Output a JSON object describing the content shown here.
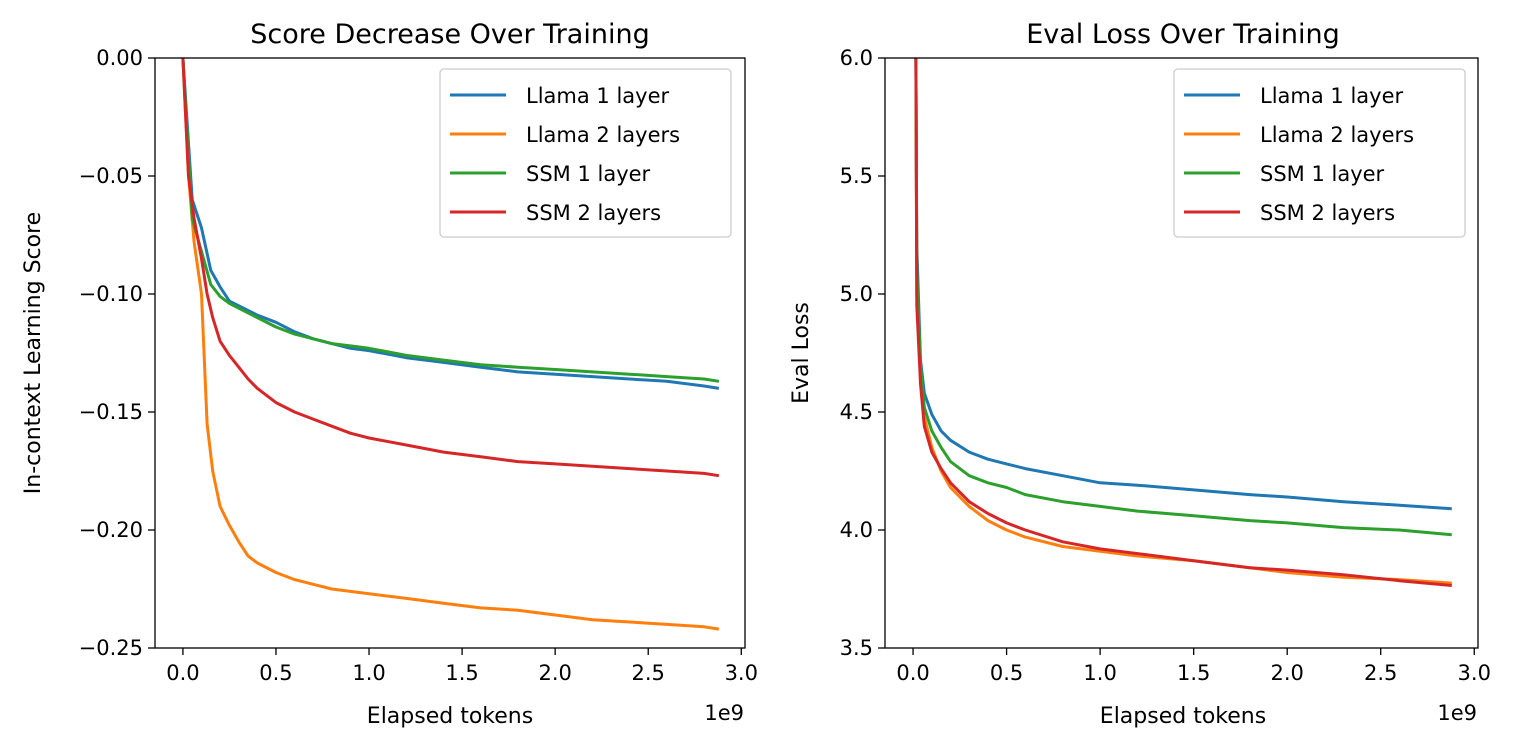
{
  "chart_data": [
    {
      "type": "line",
      "title": "Score Decrease Over Training",
      "xlabel": "Elapsed tokens",
      "ylabel": "In-context Learning Score",
      "x_offset_label": "1e9",
      "xlim": [
        -0.15,
        3.02
      ],
      "ylim": [
        -0.25,
        0.0
      ],
      "xticks": [
        0.0,
        0.5,
        1.0,
        1.5,
        2.0,
        2.5,
        3.0
      ],
      "xtick_labels": [
        "0.0",
        "0.5",
        "1.0",
        "1.5",
        "2.0",
        "2.5",
        "3.0"
      ],
      "yticks": [
        0.0,
        -0.05,
        -0.1,
        -0.15,
        -0.2,
        -0.25
      ],
      "ytick_labels": [
        "0.00",
        "−0.05",
        "−0.10",
        "−0.15",
        "−0.20",
        "−0.25"
      ],
      "grid": false,
      "legend": "top-right",
      "series": [
        {
          "name": "Llama 1 layer",
          "color": "#1f77b4",
          "x": [
            0.0,
            0.05,
            0.1,
            0.15,
            0.2,
            0.25,
            0.3,
            0.4,
            0.5,
            0.6,
            0.7,
            0.8,
            0.9,
            1.0,
            1.2,
            1.4,
            1.6,
            1.8,
            2.0,
            2.2,
            2.4,
            2.6,
            2.8,
            2.88
          ],
          "y": [
            0.0,
            -0.06,
            -0.072,
            -0.09,
            -0.097,
            -0.103,
            -0.105,
            -0.109,
            -0.112,
            -0.116,
            -0.119,
            -0.121,
            -0.123,
            -0.124,
            -0.127,
            -0.129,
            -0.131,
            -0.133,
            -0.134,
            -0.135,
            -0.136,
            -0.137,
            -0.139,
            -0.14
          ]
        },
        {
          "name": "Llama 2 layers",
          "color": "#ff7f0e",
          "x": [
            0.0,
            0.03,
            0.06,
            0.1,
            0.13,
            0.16,
            0.2,
            0.25,
            0.3,
            0.35,
            0.4,
            0.5,
            0.6,
            0.7,
            0.8,
            0.9,
            1.0,
            1.2,
            1.4,
            1.6,
            1.8,
            2.0,
            2.2,
            2.4,
            2.6,
            2.8,
            2.88
          ],
          "y": [
            0.0,
            -0.05,
            -0.078,
            -0.1,
            -0.155,
            -0.175,
            -0.19,
            -0.198,
            -0.205,
            -0.211,
            -0.214,
            -0.218,
            -0.221,
            -0.223,
            -0.225,
            -0.226,
            -0.227,
            -0.229,
            -0.231,
            -0.233,
            -0.234,
            -0.236,
            -0.238,
            -0.239,
            -0.24,
            -0.241,
            -0.242
          ]
        },
        {
          "name": "SSM 1 layer",
          "color": "#2ca02c",
          "x": [
            0.0,
            0.05,
            0.1,
            0.15,
            0.2,
            0.25,
            0.3,
            0.4,
            0.5,
            0.6,
            0.7,
            0.8,
            0.9,
            1.0,
            1.2,
            1.4,
            1.6,
            1.8,
            2.0,
            2.2,
            2.4,
            2.6,
            2.8,
            2.88
          ],
          "y": [
            0.0,
            -0.068,
            -0.082,
            -0.096,
            -0.101,
            -0.104,
            -0.106,
            -0.11,
            -0.114,
            -0.117,
            -0.119,
            -0.121,
            -0.122,
            -0.123,
            -0.126,
            -0.128,
            -0.13,
            -0.131,
            -0.132,
            -0.133,
            -0.134,
            -0.135,
            -0.136,
            -0.137
          ]
        },
        {
          "name": "SSM 2 layers",
          "color": "#d62728",
          "x": [
            0.0,
            0.03,
            0.06,
            0.1,
            0.13,
            0.16,
            0.2,
            0.25,
            0.3,
            0.35,
            0.4,
            0.5,
            0.6,
            0.7,
            0.8,
            0.9,
            1.0,
            1.2,
            1.4,
            1.6,
            1.8,
            2.0,
            2.2,
            2.4,
            2.6,
            2.8,
            2.88
          ],
          "y": [
            0.0,
            -0.05,
            -0.068,
            -0.085,
            -0.1,
            -0.11,
            -0.12,
            -0.126,
            -0.131,
            -0.136,
            -0.14,
            -0.146,
            -0.15,
            -0.153,
            -0.156,
            -0.159,
            -0.161,
            -0.164,
            -0.167,
            -0.169,
            -0.171,
            -0.172,
            -0.173,
            -0.174,
            -0.175,
            -0.176,
            -0.177
          ]
        }
      ]
    },
    {
      "type": "line",
      "title": "Eval Loss Over Training",
      "xlabel": "Elapsed tokens",
      "ylabel": "Eval Loss",
      "x_offset_label": "1e9",
      "xlim": [
        -0.15,
        3.02
      ],
      "ylim": [
        3.5,
        6.0
      ],
      "xticks": [
        0.0,
        0.5,
        1.0,
        1.5,
        2.0,
        2.5,
        3.0
      ],
      "xtick_labels": [
        "0.0",
        "0.5",
        "1.0",
        "1.5",
        "2.0",
        "2.5",
        "3.0"
      ],
      "yticks": [
        3.5,
        4.0,
        4.5,
        5.0,
        5.5,
        6.0
      ],
      "ytick_labels": [
        "3.5",
        "4.0",
        "4.5",
        "5.0",
        "5.5",
        "6.0"
      ],
      "grid": false,
      "legend": "top-right",
      "series": [
        {
          "name": "Llama 1 layer",
          "color": "#1f77b4",
          "x": [
            0.015,
            0.02,
            0.04,
            0.06,
            0.1,
            0.15,
            0.2,
            0.3,
            0.4,
            0.5,
            0.6,
            0.8,
            1.0,
            1.2,
            1.5,
            1.8,
            2.0,
            2.3,
            2.6,
            2.88
          ],
          "y": [
            6.0,
            5.2,
            4.72,
            4.58,
            4.49,
            4.42,
            4.38,
            4.33,
            4.3,
            4.28,
            4.26,
            4.23,
            4.2,
            4.19,
            4.17,
            4.15,
            4.14,
            4.12,
            4.105,
            4.09
          ]
        },
        {
          "name": "Llama 2 layers",
          "color": "#ff7f0e",
          "x": [
            0.015,
            0.02,
            0.04,
            0.06,
            0.1,
            0.15,
            0.2,
            0.3,
            0.4,
            0.5,
            0.6,
            0.8,
            1.0,
            1.2,
            1.5,
            1.8,
            2.0,
            2.3,
            2.6,
            2.88
          ],
          "y": [
            6.0,
            5.0,
            4.65,
            4.48,
            4.35,
            4.25,
            4.18,
            4.1,
            4.04,
            4.0,
            3.97,
            3.93,
            3.91,
            3.89,
            3.87,
            3.84,
            3.82,
            3.8,
            3.79,
            3.775
          ]
        },
        {
          "name": "SSM 1 layer",
          "color": "#2ca02c",
          "x": [
            0.015,
            0.02,
            0.04,
            0.06,
            0.1,
            0.15,
            0.2,
            0.3,
            0.4,
            0.5,
            0.6,
            0.8,
            1.0,
            1.2,
            1.5,
            1.8,
            2.0,
            2.3,
            2.6,
            2.88
          ],
          "y": [
            6.0,
            5.1,
            4.7,
            4.52,
            4.42,
            4.35,
            4.29,
            4.23,
            4.2,
            4.18,
            4.15,
            4.12,
            4.1,
            4.08,
            4.06,
            4.04,
            4.03,
            4.01,
            4.0,
            3.98
          ]
        },
        {
          "name": "SSM 2 layers",
          "color": "#d62728",
          "x": [
            0.015,
            0.02,
            0.04,
            0.06,
            0.1,
            0.15,
            0.2,
            0.3,
            0.4,
            0.5,
            0.6,
            0.8,
            1.0,
            1.2,
            1.5,
            1.8,
            2.0,
            2.3,
            2.6,
            2.88
          ],
          "y": [
            6.0,
            4.95,
            4.62,
            4.44,
            4.33,
            4.26,
            4.2,
            4.12,
            4.07,
            4.03,
            4.0,
            3.95,
            3.92,
            3.9,
            3.87,
            3.84,
            3.83,
            3.81,
            3.785,
            3.765
          ]
        }
      ]
    }
  ]
}
